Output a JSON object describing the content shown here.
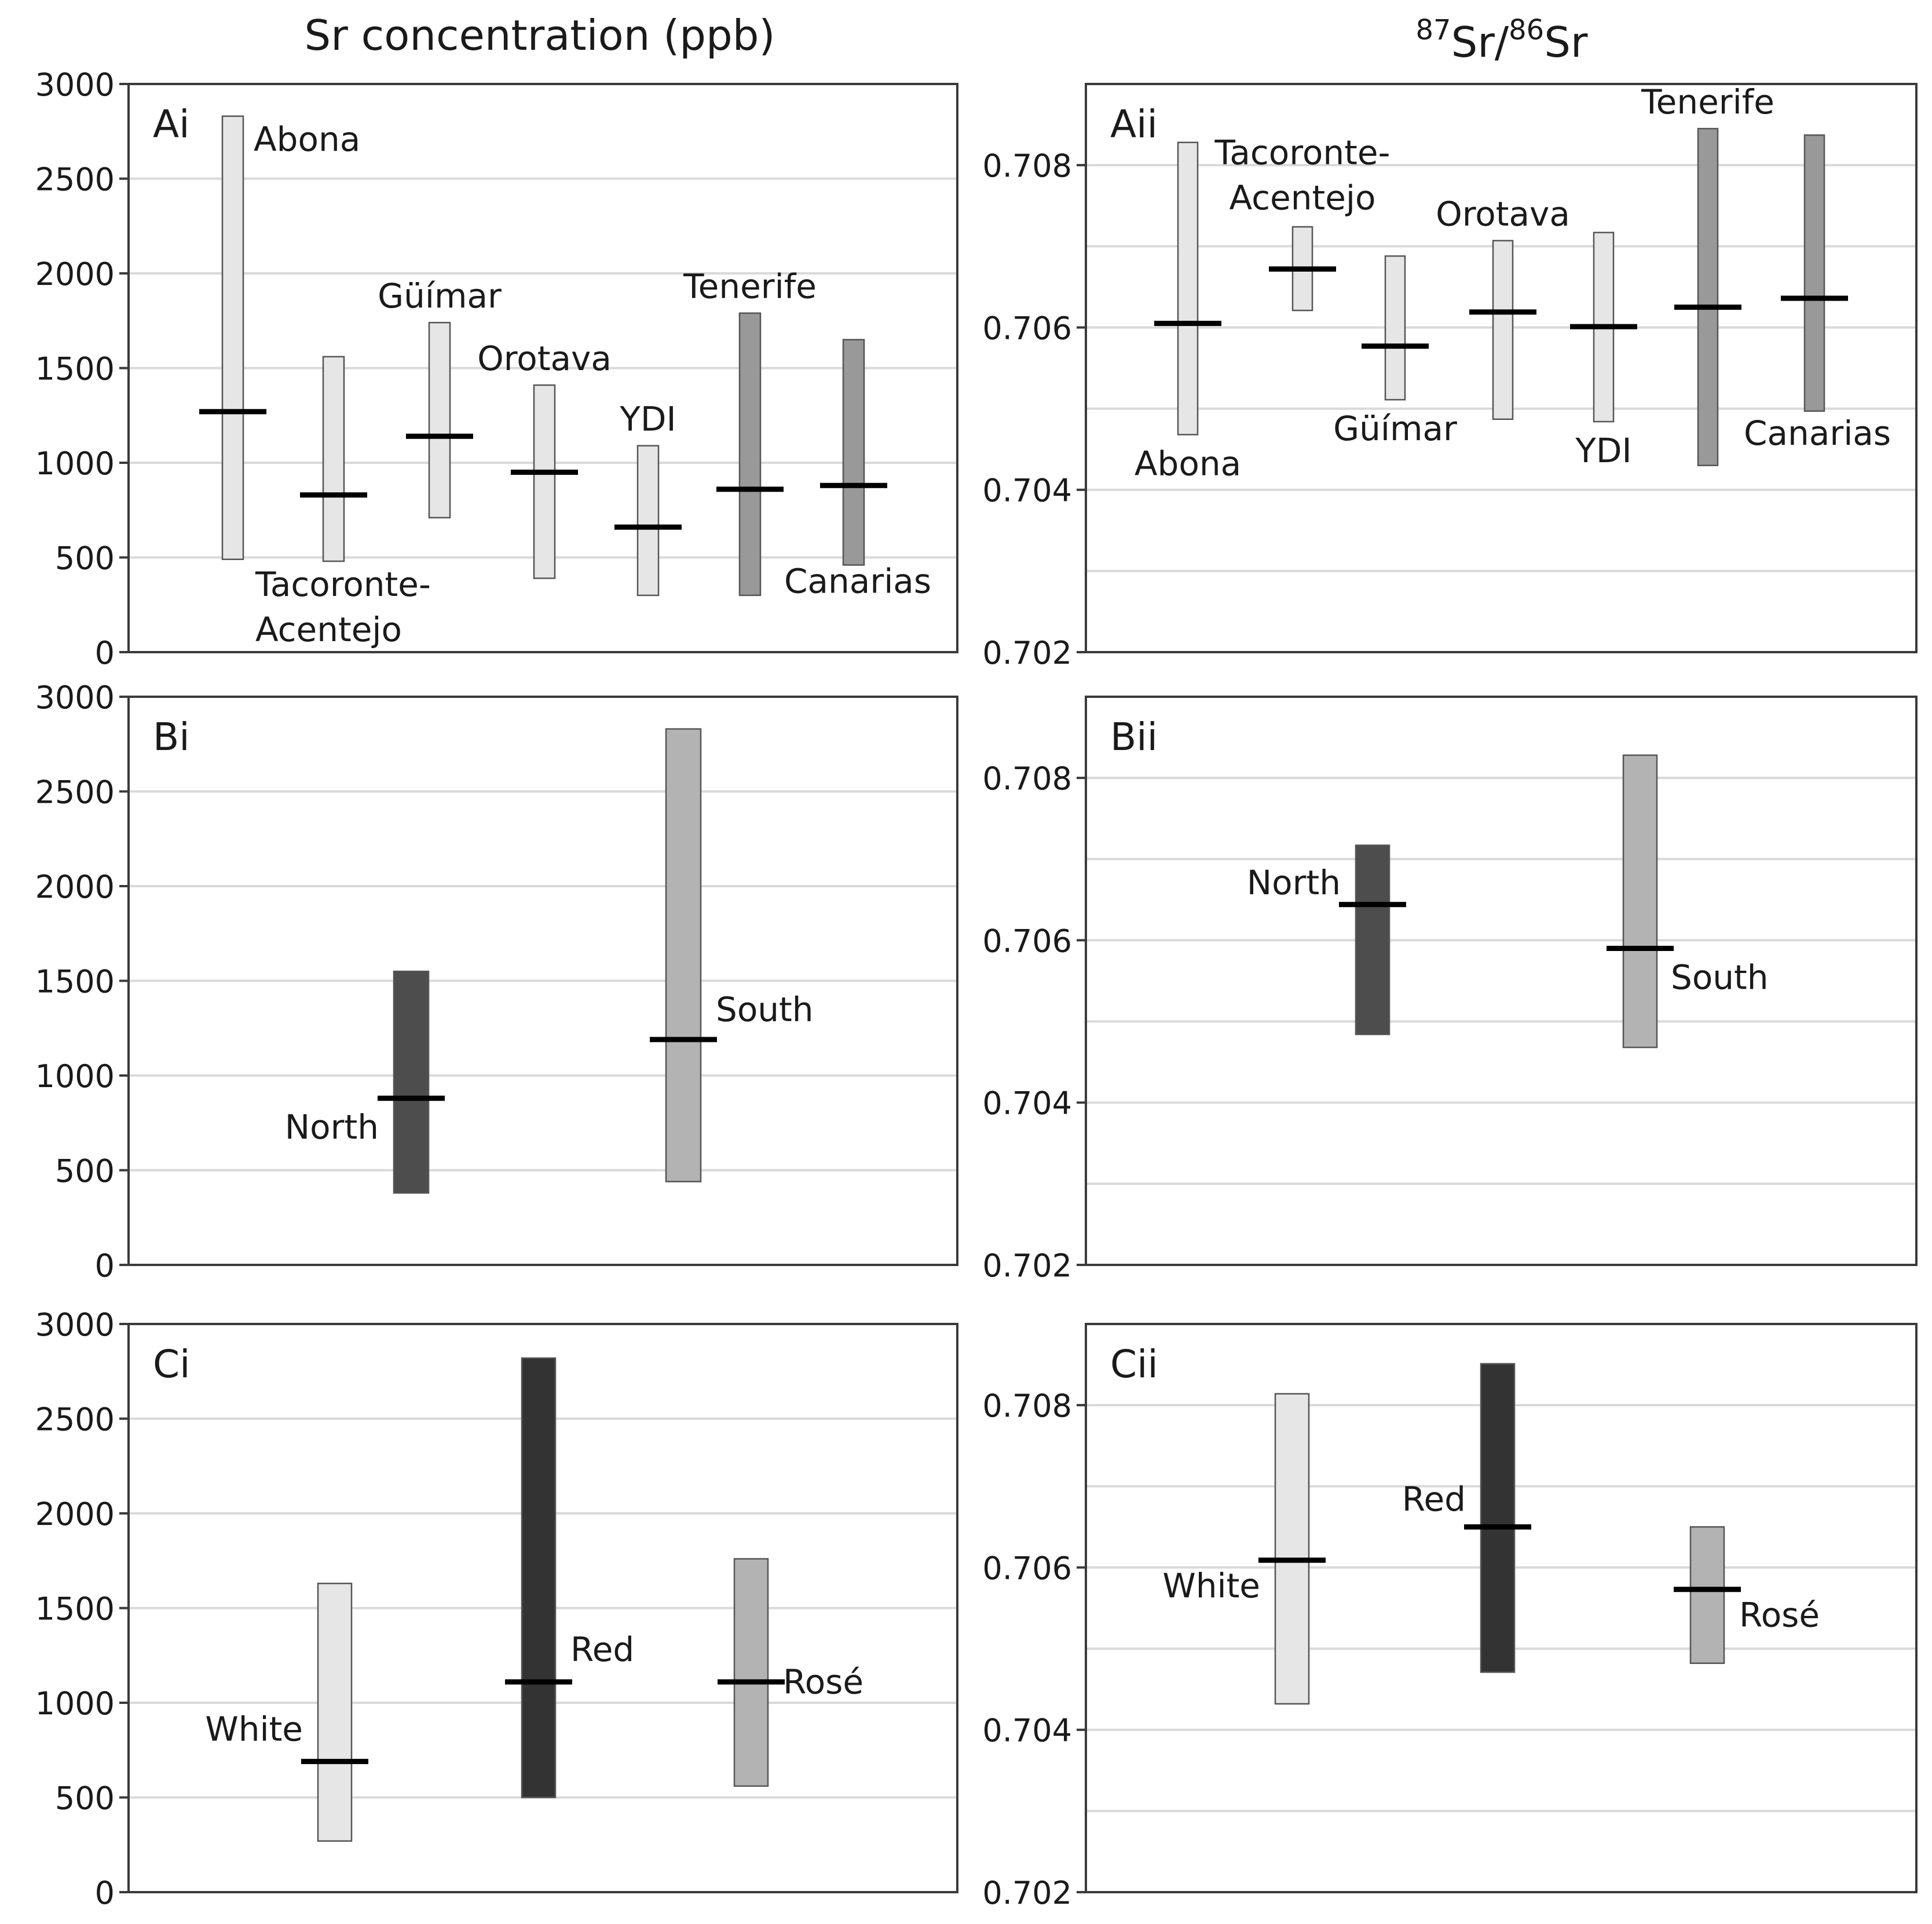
{
  "column_titles": {
    "left": "Sr concentration (ppb)",
    "right_superscript_a": "87",
    "right_a": "Sr/",
    "right_superscript_b": "86",
    "right_b": "Sr"
  },
  "colors": {
    "light": "#e6e6e6",
    "mid": "#999999",
    "mid_light": "#b3b3b3",
    "dark": "#4d4d4d",
    "very_dark": "#333333",
    "median": "#000000"
  },
  "chart_data": [
    {
      "id": "Ai",
      "type": "bar",
      "label": "Ai",
      "quantity": "Sr concentration (ppb)",
      "ylim": [
        0,
        3000
      ],
      "yticks": [
        0,
        500,
        1000,
        1500,
        2000,
        2500,
        3000
      ],
      "ytick_labels": [
        "0",
        "500",
        "1000",
        "1500",
        "2000",
        "2500",
        "3000"
      ],
      "grid": true,
      "series": [
        {
          "name": "Abona",
          "label_lines": [
            "Abona"
          ],
          "min": 490,
          "max": 2830,
          "median": 1270,
          "color": "#e6e6e6",
          "label_pos": "upper-right"
        },
        {
          "name": "Tacoronte-Acentejo",
          "label_lines": [
            "Tacoronte-",
            "Acentejo"
          ],
          "min": 480,
          "max": 1560,
          "median": 830,
          "color": "#e6e6e6",
          "label_pos": "below-left"
        },
        {
          "name": "Güímar",
          "label_lines": [
            "Güímar"
          ],
          "min": 710,
          "max": 1740,
          "median": 1140,
          "color": "#e6e6e6",
          "label_pos": "above"
        },
        {
          "name": "Orotava",
          "label_lines": [
            "Orotava"
          ],
          "min": 390,
          "max": 1410,
          "median": 950,
          "color": "#e6e6e6",
          "label_pos": "above"
        },
        {
          "name": "YDI",
          "label_lines": [
            "YDI"
          ],
          "min": 300,
          "max": 1090,
          "median": 660,
          "color": "#e6e6e6",
          "label_pos": "above"
        },
        {
          "name": "Tenerife",
          "label_lines": [
            "Tenerife"
          ],
          "min": 300,
          "max": 1790,
          "median": 860,
          "color": "#999999",
          "label_pos": "above"
        },
        {
          "name": "Canarias",
          "label_lines": [
            "Canarias"
          ],
          "min": 460,
          "max": 1650,
          "median": 880,
          "color": "#999999",
          "label_pos": "below-right"
        }
      ]
    },
    {
      "id": "Aii",
      "type": "bar",
      "label": "Aii",
      "quantity": "87Sr/86Sr",
      "ylim": [
        0.702,
        0.709
      ],
      "yticks": [
        0.702,
        0.704,
        0.706,
        0.708
      ],
      "ytick_labels": [
        "0.702",
        "0.704",
        "0.706",
        "0.708"
      ],
      "gridlines": [
        0.703,
        0.704,
        0.705,
        0.706,
        0.707,
        0.708
      ],
      "grid": true,
      "series": [
        {
          "name": "Abona",
          "label_lines": [
            "Abona"
          ],
          "min": 0.70468,
          "max": 0.70828,
          "median": 0.70605,
          "color": "#e6e6e6",
          "label_pos": "below"
        },
        {
          "name": "Tacoronte-Acentejo",
          "label_lines": [
            "Tacoronte-",
            "Acentejo"
          ],
          "min": 0.70621,
          "max": 0.70724,
          "median": 0.70672,
          "color": "#e6e6e6",
          "label_pos": "above"
        },
        {
          "name": "Güímar",
          "label_lines": [
            "Güímar"
          ],
          "min": 0.70511,
          "max": 0.70688,
          "median": 0.70577,
          "color": "#e6e6e6",
          "label_pos": "below"
        },
        {
          "name": "Orotava",
          "label_lines": [
            "Orotava"
          ],
          "min": 0.70487,
          "max": 0.70707,
          "median": 0.70619,
          "color": "#e6e6e6",
          "label_pos": "above"
        },
        {
          "name": "YDI",
          "label_lines": [
            "YDI"
          ],
          "min": 0.70484,
          "max": 0.70717,
          "median": 0.70601,
          "color": "#e6e6e6",
          "label_pos": "below"
        },
        {
          "name": "Tenerife",
          "label_lines": [
            "Tenerife"
          ],
          "min": 0.7043,
          "max": 0.70845,
          "median": 0.70625,
          "color": "#999999",
          "label_pos": "above"
        },
        {
          "name": "Canarias",
          "label_lines": [
            "Canarias"
          ],
          "min": 0.70497,
          "max": 0.70837,
          "median": 0.70636,
          "color": "#999999",
          "label_pos": "below-right"
        }
      ]
    },
    {
      "id": "Bi",
      "type": "bar",
      "label": "Bi",
      "quantity": "Sr concentration (ppb)",
      "ylim": [
        0,
        3000
      ],
      "yticks": [
        0,
        500,
        1000,
        1500,
        2000,
        2500,
        3000
      ],
      "ytick_labels": [
        "0",
        "500",
        "1000",
        "1500",
        "2000",
        "2500",
        "3000"
      ],
      "grid": true,
      "series": [
        {
          "name": "North",
          "label_lines": [
            "North"
          ],
          "min": 380,
          "max": 1550,
          "median": 880,
          "color": "#4d4d4d",
          "label_pos": "left"
        },
        {
          "name": "South",
          "label_lines": [
            "South"
          ],
          "min": 440,
          "max": 2830,
          "median": 1190,
          "color": "#b3b3b3",
          "label_pos": "right"
        }
      ]
    },
    {
      "id": "Bii",
      "type": "bar",
      "label": "Bii",
      "quantity": "87Sr/86Sr",
      "ylim": [
        0.702,
        0.709
      ],
      "yticks": [
        0.702,
        0.704,
        0.706,
        0.708
      ],
      "ytick_labels": [
        "0.702",
        "0.704",
        "0.706",
        "0.708"
      ],
      "gridlines": [
        0.703,
        0.704,
        0.705,
        0.706,
        0.707,
        0.708
      ],
      "grid": true,
      "series": [
        {
          "name": "North",
          "label_lines": [
            "North"
          ],
          "min": 0.70484,
          "max": 0.70717,
          "median": 0.70644,
          "color": "#4d4d4d",
          "label_pos": "left"
        },
        {
          "name": "South",
          "label_lines": [
            "South"
          ],
          "min": 0.70468,
          "max": 0.70828,
          "median": 0.7059,
          "color": "#b3b3b3",
          "label_pos": "right-below"
        }
      ]
    },
    {
      "id": "Ci",
      "type": "bar",
      "label": "Ci",
      "quantity": "Sr concentration (ppb)",
      "ylim": [
        0,
        3000
      ],
      "yticks": [
        0,
        500,
        1000,
        1500,
        2000,
        2500,
        3000
      ],
      "ytick_labels": [
        "0",
        "500",
        "1000",
        "1500",
        "2000",
        "2500",
        "3000"
      ],
      "grid": true,
      "series": [
        {
          "name": "White",
          "label_lines": [
            "White"
          ],
          "min": 270,
          "max": 1630,
          "median": 690,
          "color": "#e6e6e6",
          "label_pos": "left"
        },
        {
          "name": "Red",
          "label_lines": [
            "Red"
          ],
          "min": 500,
          "max": 2820,
          "median": 1110,
          "color": "#333333",
          "label_pos": "right"
        },
        {
          "name": "Rosé",
          "label_lines": [
            "Rosé"
          ],
          "min": 560,
          "max": 1760,
          "median": 1110,
          "color": "#b3b3b3",
          "label_pos": "right"
        }
      ]
    },
    {
      "id": "Cii",
      "type": "bar",
      "label": "Cii",
      "quantity": "87Sr/86Sr",
      "ylim": [
        0.702,
        0.709
      ],
      "yticks": [
        0.702,
        0.704,
        0.706,
        0.708
      ],
      "ytick_labels": [
        "0.702",
        "0.704",
        "0.706",
        "0.708"
      ],
      "gridlines": [
        0.703,
        0.704,
        0.705,
        0.706,
        0.707,
        0.708
      ],
      "grid": true,
      "series": [
        {
          "name": "White",
          "label_lines": [
            "White"
          ],
          "min": 0.70432,
          "max": 0.70814,
          "median": 0.70609,
          "color": "#e6e6e6",
          "label_pos": "left"
        },
        {
          "name": "Red",
          "label_lines": [
            "Red"
          ],
          "min": 0.70471,
          "max": 0.70851,
          "median": 0.7065,
          "color": "#333333",
          "label_pos": "left"
        },
        {
          "name": "Rosé",
          "label_lines": [
            "Rosé"
          ],
          "min": 0.70482,
          "max": 0.7065,
          "median": 0.70573,
          "color": "#b3b3b3",
          "label_pos": "right"
        }
      ]
    }
  ]
}
